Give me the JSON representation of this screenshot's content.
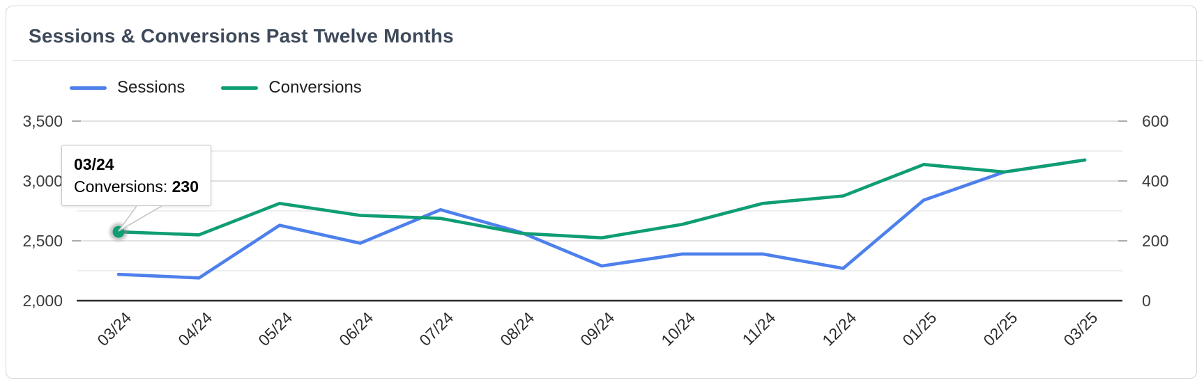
{
  "card": {
    "title": "Sessions & Conversions Past Twelve Months"
  },
  "legend": [
    {
      "label": "Sessions",
      "color": "#4e80ec"
    },
    {
      "label": "Conversions",
      "color": "#0f9d74"
    }
  ],
  "tooltip": {
    "title": "03/24",
    "series_label": "Conversions:",
    "value": "230"
  },
  "chart_data": {
    "type": "line",
    "title": "Sessions & Conversions Past Twelve Months",
    "categories": [
      "03/24",
      "04/24",
      "05/24",
      "06/24",
      "07/24",
      "08/24",
      "09/24",
      "10/24",
      "11/24",
      "12/24",
      "01/25",
      "02/25",
      "03/25"
    ],
    "series": [
      {
        "name": "Sessions",
        "axis": "left",
        "color": "#4e80ec",
        "values": [
          2220,
          2190,
          2630,
          2480,
          2760,
          2570,
          2290,
          2390,
          2390,
          2270,
          2840,
          3075,
          3175
        ]
      },
      {
        "name": "Conversions",
        "axis": "right",
        "color": "#0f9d74",
        "values": [
          230,
          220,
          325,
          285,
          275,
          225,
          210,
          255,
          325,
          350,
          455,
          430,
          470
        ]
      }
    ],
    "left_axis": {
      "min": 2000,
      "max": 3500,
      "tick_values": [
        2000,
        2500,
        3000,
        3500
      ],
      "tick_labels": [
        "2,000",
        "2,500",
        "3,000",
        "3,500"
      ]
    },
    "right_axis": {
      "min": 0,
      "max": 600,
      "tick_values": [
        0,
        200,
        400,
        600
      ],
      "tick_labels": [
        "0",
        "200",
        "400",
        "600"
      ]
    },
    "gridline_divisions": 6,
    "grid": true,
    "legend_position": "top-left",
    "highlight": {
      "series": "Conversions",
      "category": "03/24",
      "index": 0,
      "value": 230
    }
  },
  "colors": {
    "grid_major": "#cfcfcf",
    "grid_minor": "#e4e4e4",
    "axis_line": "#2b2b2b",
    "halo": "#8a8a8a"
  }
}
